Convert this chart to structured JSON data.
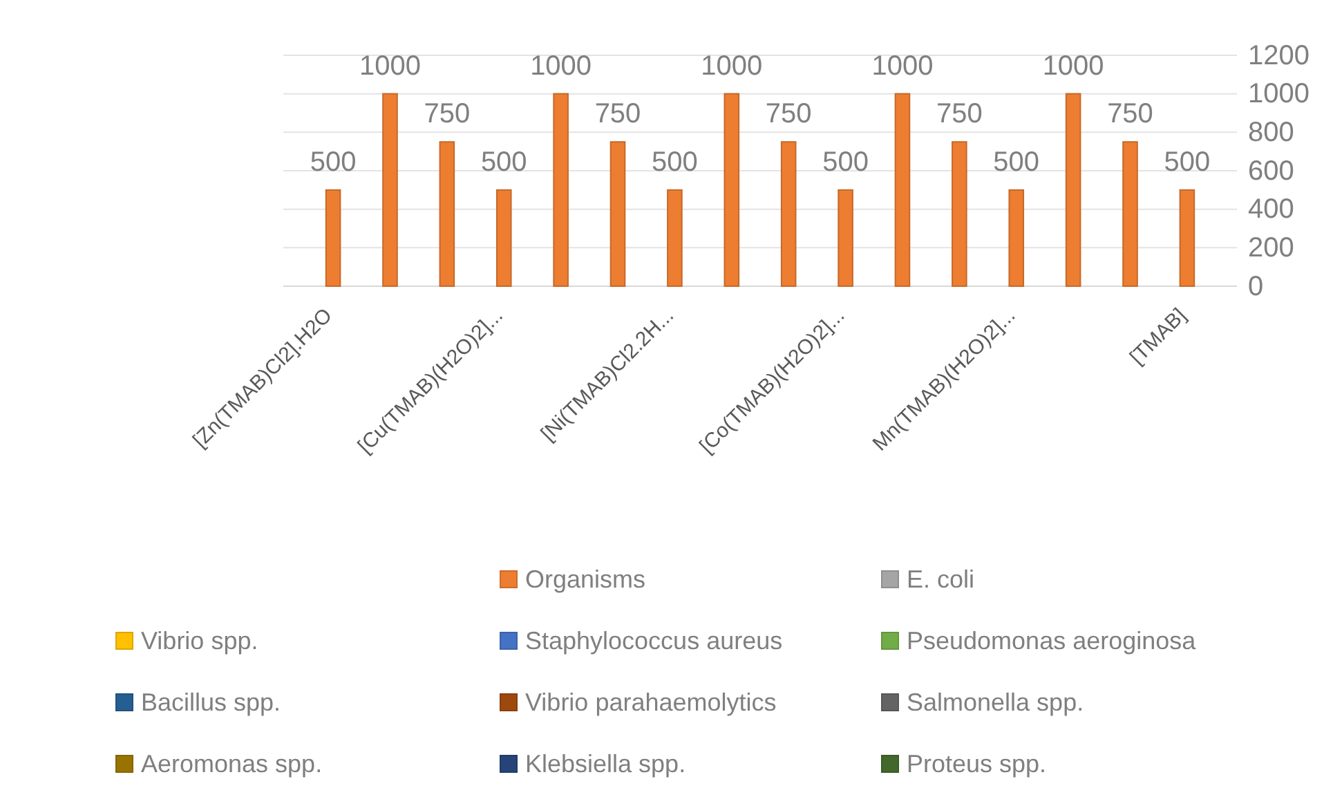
{
  "chart_data": {
    "type": "bar",
    "categories": [
      "[Zn(TMAB)Cl2].H2O",
      null,
      null,
      "[Cu(TMAB)(H2O)2]...",
      null,
      null,
      "[Ni(TMAB)Cl2.2H...",
      null,
      null,
      "[Co(TMAB)(H2O)2]...",
      null,
      null,
      "Mn(TMAB)(H2O)2]...",
      null,
      null,
      "[TMAB]"
    ],
    "series": [
      {
        "name": "Organisms",
        "color": "#ed7d31",
        "axis": "y2",
        "values": [
          500,
          1000,
          750,
          500,
          1000,
          750,
          500,
          1000,
          750,
          500,
          1000,
          750,
          500,
          1000,
          750,
          500
        ]
      },
      {
        "name": "E. coli",
        "color": "#a5a5a5",
        "values": [
          null,
          null,
          null,
          null,
          null,
          null,
          null,
          null,
          null,
          null,
          null,
          null,
          null,
          null,
          null,
          null
        ]
      },
      {
        "name": "Vibrio spp.",
        "color": "#ffc000",
        "values": [
          null,
          null,
          null,
          null,
          null,
          null,
          null,
          null,
          null,
          null,
          null,
          null,
          null,
          null,
          null,
          null
        ]
      },
      {
        "name": "Staphylococcus aureus",
        "color": "#4472c4",
        "values": [
          null,
          null,
          null,
          null,
          null,
          null,
          null,
          null,
          null,
          null,
          null,
          null,
          null,
          null,
          null,
          null
        ]
      },
      {
        "name": "Pseudomonas aeroginosa",
        "color": "#70ad47",
        "values": [
          null,
          null,
          null,
          null,
          null,
          null,
          null,
          null,
          null,
          null,
          null,
          null,
          null,
          null,
          null,
          null
        ]
      },
      {
        "name": "Bacillus spp.",
        "color": "#255e91",
        "values": [
          null,
          null,
          null,
          null,
          null,
          null,
          null,
          null,
          null,
          null,
          null,
          null,
          null,
          null,
          null,
          null
        ]
      },
      {
        "name": "Vibrio parahaemolytics",
        "color": "#9e480e",
        "values": [
          null,
          null,
          null,
          null,
          null,
          null,
          null,
          null,
          null,
          null,
          null,
          null,
          null,
          null,
          null,
          null
        ]
      },
      {
        "name": "Salmonella spp.",
        "color": "#636363",
        "values": [
          null,
          null,
          null,
          null,
          null,
          null,
          null,
          null,
          null,
          null,
          null,
          null,
          null,
          null,
          null,
          null
        ]
      },
      {
        "name": "Aeromonas spp.",
        "color": "#997300",
        "values": [
          null,
          null,
          null,
          null,
          null,
          null,
          null,
          null,
          null,
          null,
          null,
          null,
          null,
          null,
          null,
          null
        ]
      },
      {
        "name": "Klebsiella spp.",
        "color": "#264478",
        "values": [
          null,
          null,
          null,
          null,
          null,
          null,
          null,
          null,
          null,
          null,
          null,
          null,
          null,
          null,
          null,
          null
        ]
      },
      {
        "name": "Proteus spp.",
        "color": "#43682b",
        "values": [
          null,
          null,
          null,
          null,
          null,
          null,
          null,
          null,
          null,
          null,
          null,
          null,
          null,
          null,
          null,
          null
        ]
      }
    ],
    "y2lim": [
      0,
      1200
    ],
    "y2ticks": [
      0,
      200,
      400,
      600,
      800,
      1000,
      1200
    ],
    "grid": "y",
    "data_labels": true,
    "legend": "bottom"
  }
}
